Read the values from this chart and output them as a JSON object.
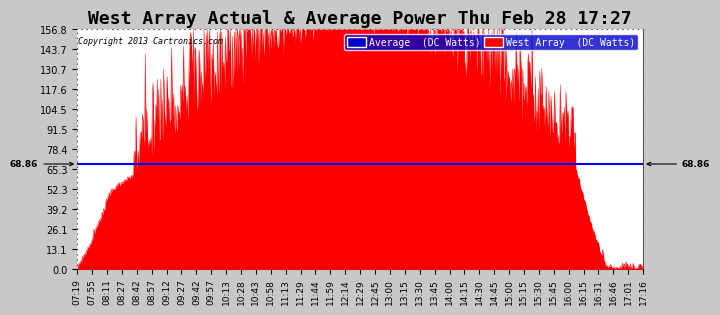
{
  "title": "West Array Actual & Average Power Thu Feb 28 17:27",
  "copyright": "Copyright 2013 Cartronics.com",
  "legend_avg": "Average  (DC Watts)",
  "legend_west": "West Array  (DC Watts)",
  "avg_value": 68.86,
  "avg_label": "68.86",
  "yticks": [
    0.0,
    13.1,
    26.1,
    39.2,
    52.3,
    65.3,
    78.4,
    91.5,
    104.5,
    117.6,
    130.7,
    143.7,
    156.8
  ],
  "ylim": [
    0.0,
    156.8
  ],
  "plot_bg": "#ffffff",
  "fig_bg": "#c8c8c8",
  "grid_color": "#aaaaaa",
  "fill_color": "#ff0000",
  "avg_line_color": "#0000ff",
  "xtick_labels": [
    "07:19",
    "07:55",
    "08:11",
    "08:27",
    "08:42",
    "08:57",
    "09:12",
    "09:27",
    "09:42",
    "09:57",
    "10:13",
    "10:28",
    "10:43",
    "10:58",
    "11:13",
    "11:29",
    "11:44",
    "11:59",
    "12:14",
    "12:29",
    "12:45",
    "13:00",
    "13:15",
    "13:30",
    "13:45",
    "14:00",
    "14:15",
    "14:30",
    "14:45",
    "15:00",
    "15:15",
    "15:30",
    "15:45",
    "16:00",
    "16:15",
    "16:31",
    "16:46",
    "17:01",
    "17:16"
  ],
  "title_fontsize": 13,
  "tick_fontsize": 7
}
